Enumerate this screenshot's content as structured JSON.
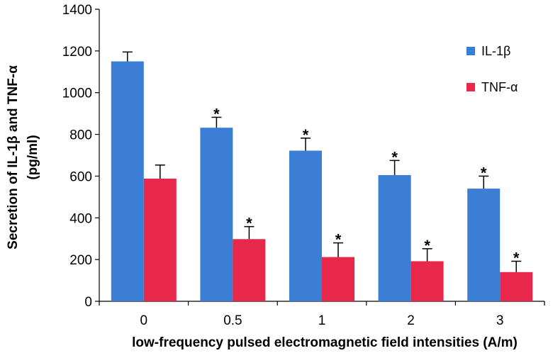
{
  "chart_data": {
    "type": "bar",
    "title": "",
    "xlabel": "low-frequency pulsed electromagnetic field intensities  (A/m)",
    "ylabel_lines": [
      "Secretion of IL-1β and TNF-α",
      "(pg/ml)"
    ],
    "ylim": [
      0,
      1400
    ],
    "yticks": [
      0,
      200,
      400,
      600,
      800,
      1000,
      1200,
      1400
    ],
    "categories": [
      "0",
      "0.5",
      "1",
      "2",
      "3"
    ],
    "grid": false,
    "legend_position": "top-right",
    "series": [
      {
        "name": "IL-1β",
        "color": "#3a7fd5",
        "values": [
          1150,
          832,
          722,
          605,
          540
        ],
        "errors": [
          45,
          50,
          60,
          70,
          60
        ],
        "significance": [
          "",
          "*",
          "*",
          "*",
          "*"
        ]
      },
      {
        "name": "TNF-α",
        "color": "#e8284a",
        "values": [
          588,
          298,
          212,
          192,
          140
        ],
        "errors": [
          65,
          60,
          68,
          60,
          52
        ],
        "significance": [
          "",
          "*",
          "*",
          "*",
          "*"
        ]
      }
    ]
  }
}
